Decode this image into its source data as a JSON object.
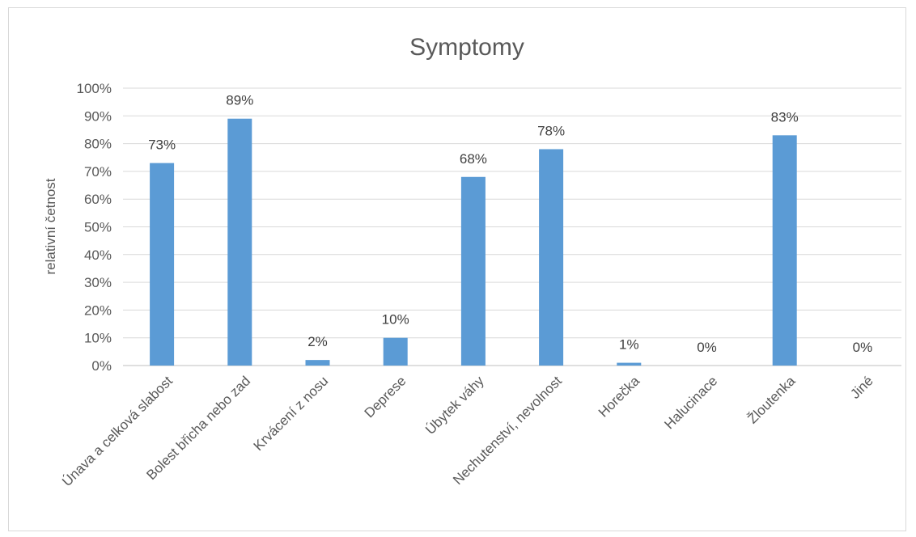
{
  "chart_data": {
    "type": "bar",
    "title": "Symptomy",
    "xlabel": "",
    "ylabel": "relativní četnost",
    "ylim": [
      0,
      100
    ],
    "yticks": [
      "0%",
      "10%",
      "20%",
      "30%",
      "40%",
      "50%",
      "60%",
      "70%",
      "80%",
      "90%",
      "100%"
    ],
    "categories": [
      "Únava a celková slabost",
      "Bolest břicha nebo zad",
      "Krvácení z nosu",
      "Deprese",
      "Úbytek váhy",
      "Nechutenství, nevolnost",
      "Horečka",
      "Halucinace",
      "Žloutenka",
      "Jiné"
    ],
    "values": [
      73,
      89,
      2,
      10,
      68,
      78,
      1,
      0,
      83,
      0
    ],
    "data_labels": [
      "73%",
      "89%",
      "2%",
      "10%",
      "68%",
      "78%",
      "1%",
      "0%",
      "83%",
      "0%"
    ],
    "grid": true,
    "legend": "none",
    "colors": {
      "bar": "#5b9bd5",
      "grid": "#d9d9d9",
      "text": "#595959"
    }
  }
}
